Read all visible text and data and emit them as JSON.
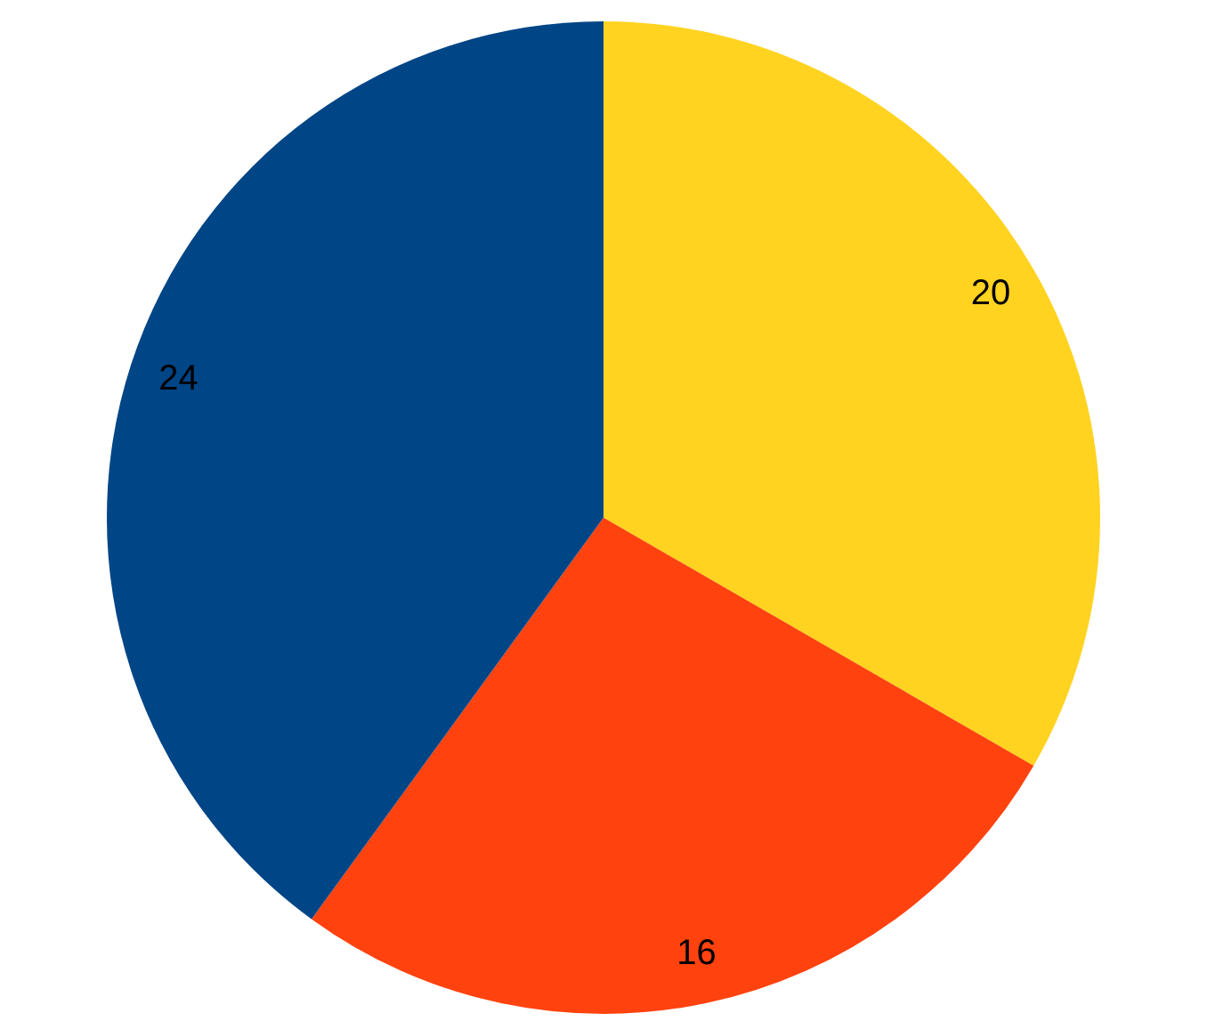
{
  "chart_data": {
    "type": "pie",
    "categories": [
      null,
      null,
      null
    ],
    "values": [
      20,
      16,
      24
    ],
    "colors": [
      "#ffd320",
      "#ff420e",
      "#004586"
    ],
    "data_labels": true
  }
}
